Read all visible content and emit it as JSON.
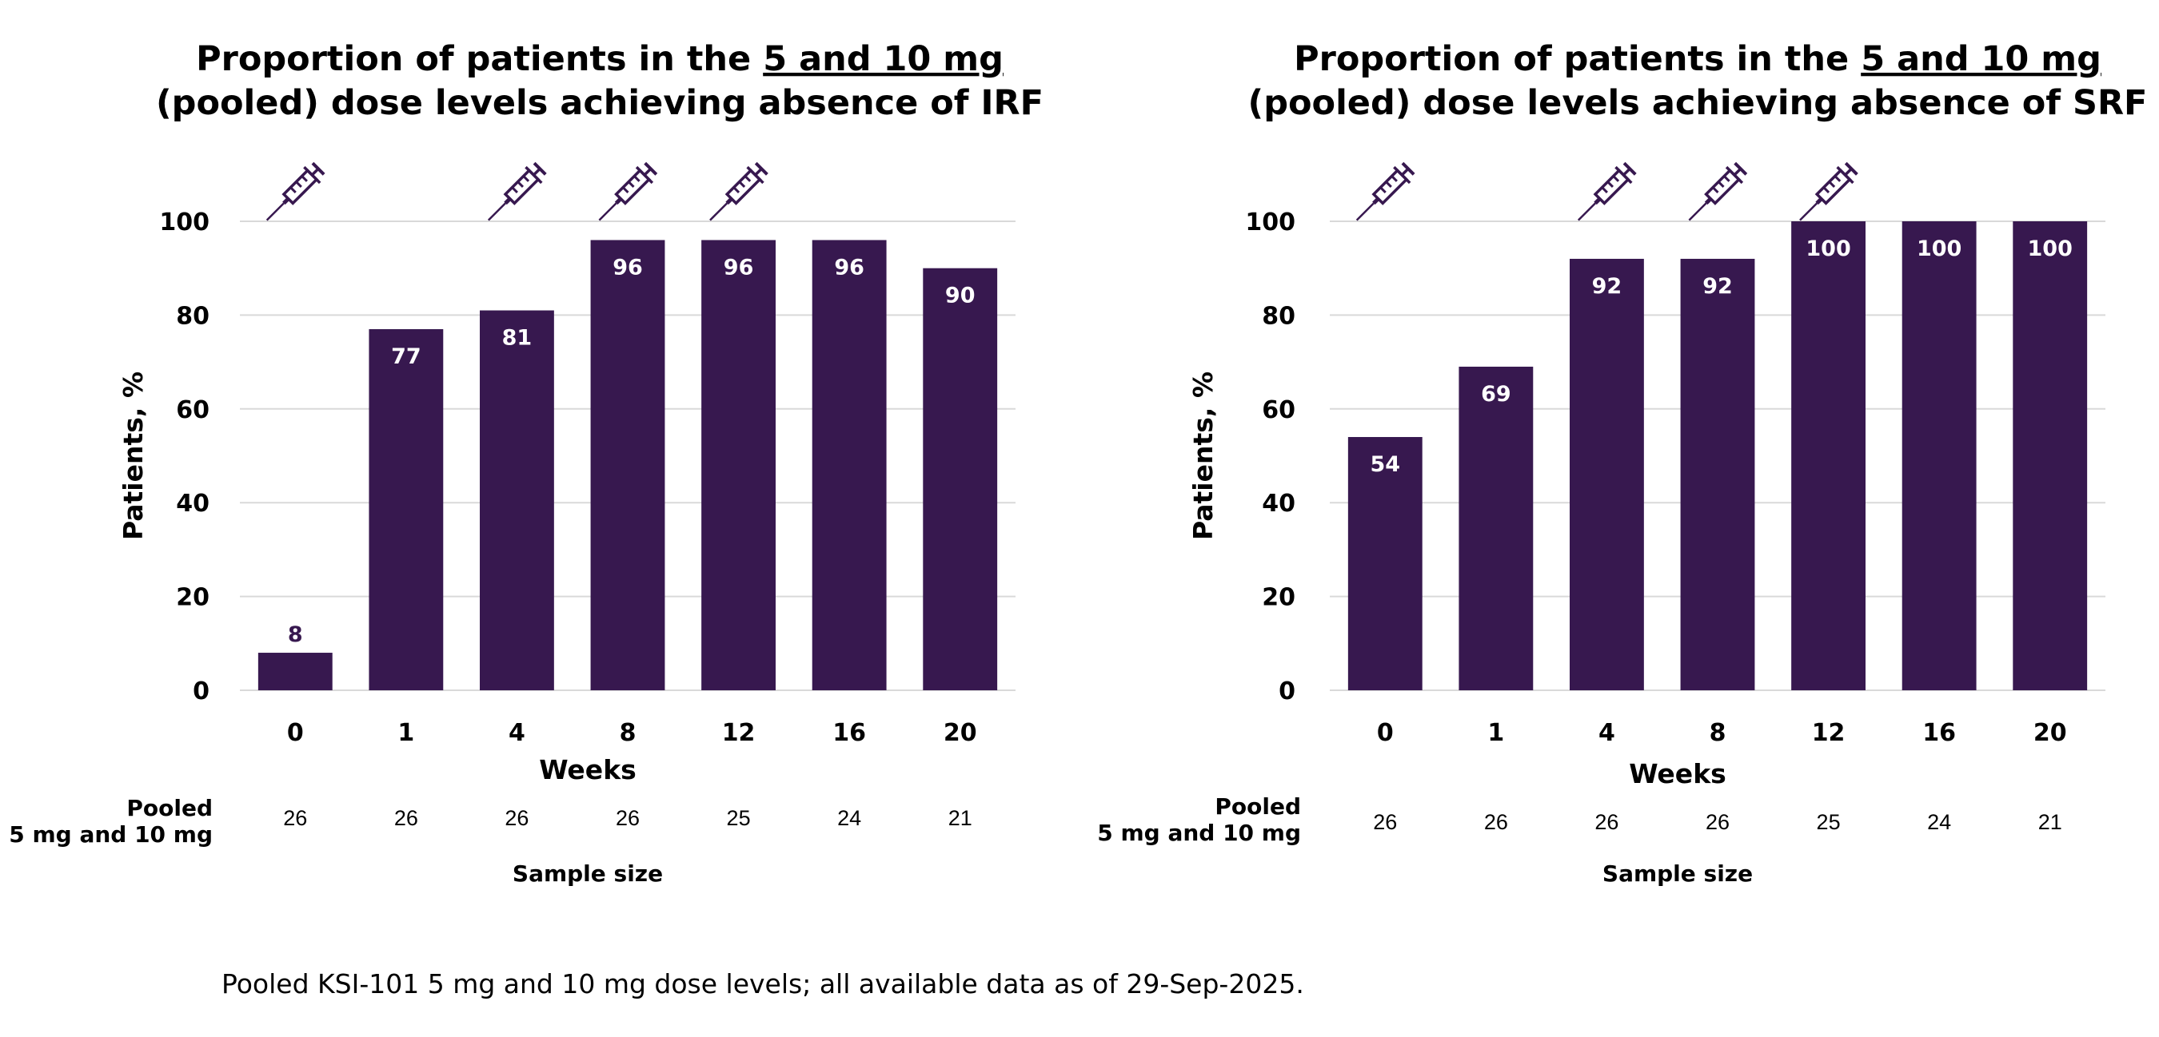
{
  "colors": {
    "bar": "#37184f",
    "grid": "#d9d9d9",
    "label_inside": "#ffffff",
    "label_above": "#37184f"
  },
  "footnote": "Pooled KSI-101 5 mg and 10 mg dose levels; all available data as of 29-Sep-2025.",
  "chart_data": [
    {
      "type": "bar",
      "title_lines": [
        "Proportion of patients in the ",
        "5 and 10 mg",
        "(pooled) dose levels achieving absence of IRF"
      ],
      "categories": [
        "0",
        "1",
        "4",
        "8",
        "12",
        "16",
        "20"
      ],
      "values": [
        8,
        77,
        81,
        96,
        96,
        96,
        90
      ],
      "xlabel": "Weeks",
      "ylabel": "Patients, %",
      "ylim": [
        0,
        100
      ],
      "yticks": [
        0,
        20,
        40,
        60,
        80,
        100
      ],
      "grid": true,
      "dosing_icon": "syringe-icon",
      "dosing_weeks": [
        "0",
        "4",
        "8",
        "12"
      ],
      "sample_size_row_label": [
        "Pooled",
        "5 mg and 10 mg"
      ],
      "sample_sizes": [
        "26",
        "26",
        "26",
        "26",
        "25",
        "24",
        "21"
      ],
      "sample_size_label": "Sample size"
    },
    {
      "type": "bar",
      "title_lines": [
        "Proportion of patients in the ",
        "5 and 10 mg",
        "(pooled) dose levels achieving absence of SRF"
      ],
      "categories": [
        "0",
        "1",
        "4",
        "8",
        "12",
        "16",
        "20"
      ],
      "values": [
        54,
        69,
        92,
        92,
        100,
        100,
        100
      ],
      "xlabel": "Weeks",
      "ylabel": "Patients, %",
      "ylim": [
        0,
        100
      ],
      "yticks": [
        0,
        20,
        40,
        60,
        80,
        100
      ],
      "grid": true,
      "dosing_icon": "syringe-icon",
      "dosing_weeks": [
        "0",
        "4",
        "8",
        "12"
      ],
      "sample_size_row_label": [
        "Pooled",
        "5 mg and 10 mg"
      ],
      "sample_sizes": [
        "26",
        "26",
        "26",
        "26",
        "25",
        "24",
        "21"
      ],
      "sample_size_label": "Sample size"
    }
  ]
}
